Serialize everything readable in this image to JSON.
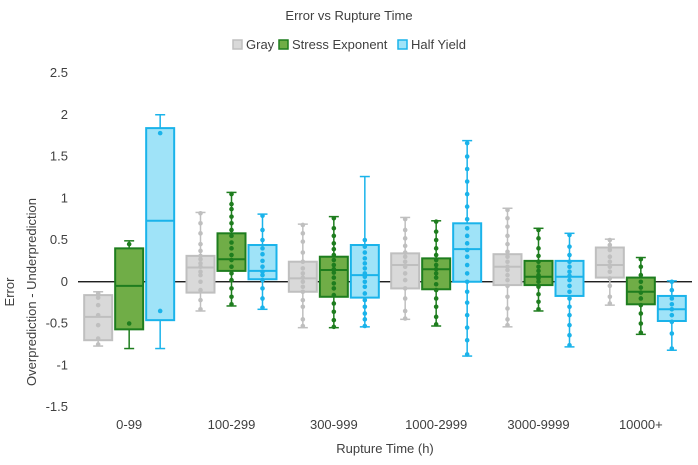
{
  "chart_data": {
    "type": "box",
    "title": "Error vs Rupture Time",
    "xlabel": "Rupture Time (h)",
    "ylabel_lines": [
      "Error",
      "Overprediction - Underprediction"
    ],
    "ylim": [
      -1.5,
      2.5
    ],
    "yticks": [
      -1.5,
      -1,
      -0.5,
      0,
      0.5,
      1,
      1.5,
      2,
      2.5
    ],
    "ytick_labels": [
      "-1.5",
      "-1",
      "-0.5",
      "0",
      "0.5",
      "1",
      "1.5",
      "2",
      "2.5"
    ],
    "categories": [
      "0-99",
      "100-299",
      "300-999",
      "1000-2999",
      "3000-9999",
      "10000+"
    ],
    "legend_position": "top",
    "grid": false,
    "series": [
      {
        "name": "Gray",
        "fill": "#d9d9d9",
        "stroke": "#bfbfbf",
        "point": "#bfbfbf",
        "boxes": [
          {
            "min": -0.77,
            "q1": -0.7,
            "median": -0.42,
            "q3": -0.16,
            "max": -0.12,
            "points": [
              -0.75,
              -0.68,
              -0.52,
              -0.4,
              -0.28,
              -0.19,
              -0.14
            ]
          },
          {
            "min": -0.35,
            "q1": -0.13,
            "median": 0.17,
            "q3": 0.31,
            "max": 0.83,
            "points": [
              -0.33,
              -0.22,
              -0.1,
              0.0,
              0.08,
              0.12,
              0.18,
              0.22,
              0.27,
              0.31,
              0.37,
              0.45,
              0.58,
              0.7,
              0.82
            ]
          },
          {
            "min": -0.55,
            "q1": -0.12,
            "median": 0.04,
            "q3": 0.24,
            "max": 0.69,
            "points": [
              -0.53,
              -0.45,
              -0.3,
              -0.22,
              -0.12,
              -0.06,
              0.0,
              0.05,
              0.1,
              0.16,
              0.24,
              0.35,
              0.48,
              0.58,
              0.68
            ]
          },
          {
            "min": -0.45,
            "q1": -0.08,
            "median": 0.2,
            "q3": 0.34,
            "max": 0.77,
            "points": [
              -0.44,
              -0.35,
              -0.2,
              -0.08,
              0.02,
              0.1,
              0.18,
              0.24,
              0.3,
              0.35,
              0.43,
              0.52,
              0.62,
              0.75
            ]
          },
          {
            "min": -0.54,
            "q1": -0.04,
            "median": 0.18,
            "q3": 0.33,
            "max": 0.88,
            "points": [
              -0.52,
              -0.45,
              -0.32,
              -0.18,
              -0.05,
              0.02,
              0.08,
              0.14,
              0.18,
              0.24,
              0.3,
              0.36,
              0.45,
              0.55,
              0.66,
              0.76,
              0.86
            ]
          },
          {
            "min": -0.28,
            "q1": 0.05,
            "median": 0.2,
            "q3": 0.41,
            "max": 0.51,
            "points": [
              -0.26,
              -0.18,
              -0.05,
              0.04,
              0.12,
              0.18,
              0.24,
              0.3,
              0.38,
              0.44,
              0.5
            ]
          }
        ]
      },
      {
        "name": "Stress Exponent",
        "fill": "#70ad47",
        "stroke": "#1e7d1e",
        "point": "#1e7d1e",
        "boxes": [
          {
            "min": -0.8,
            "q1": -0.57,
            "median": -0.05,
            "q3": 0.4,
            "max": 0.49,
            "points": [
              -0.5,
              0.45
            ]
          },
          {
            "min": -0.29,
            "q1": 0.13,
            "median": 0.27,
            "q3": 0.58,
            "max": 1.07,
            "points": [
              -0.27,
              -0.18,
              -0.08,
              0.02,
              0.1,
              0.18,
              0.26,
              0.32,
              0.4,
              0.47,
              0.55,
              0.62,
              0.7,
              0.78,
              0.87,
              0.93,
              1.05
            ]
          },
          {
            "min": -0.55,
            "q1": -0.18,
            "median": 0.14,
            "q3": 0.3,
            "max": 0.78,
            "points": [
              -0.54,
              -0.46,
              -0.36,
              -0.26,
              -0.16,
              -0.08,
              -0.02,
              0.05,
              0.11,
              0.15,
              0.2,
              0.26,
              0.32,
              0.39,
              0.46,
              0.55,
              0.64,
              0.76
            ]
          },
          {
            "min": -0.53,
            "q1": -0.09,
            "median": 0.15,
            "q3": 0.28,
            "max": 0.73,
            "points": [
              -0.51,
              -0.42,
              -0.3,
              -0.2,
              -0.1,
              -0.03,
              0.05,
              0.1,
              0.15,
              0.2,
              0.26,
              0.32,
              0.4,
              0.5,
              0.6,
              0.72
            ]
          },
          {
            "min": -0.35,
            "q1": -0.04,
            "median": 0.06,
            "q3": 0.25,
            "max": 0.64,
            "points": [
              -0.33,
              -0.24,
              -0.15,
              -0.06,
              0.0,
              0.04,
              0.08,
              0.13,
              0.18,
              0.24,
              0.31,
              0.4,
              0.52,
              0.62
            ]
          },
          {
            "min": -0.63,
            "q1": -0.27,
            "median": -0.12,
            "q3": 0.05,
            "max": 0.29,
            "points": [
              -0.61,
              -0.5,
              -0.38,
              -0.28,
              -0.2,
              -0.13,
              -0.07,
              0.0,
              0.08,
              0.18,
              0.27
            ]
          }
        ]
      },
      {
        "name": "Half Yield",
        "fill": "#9fe3f8",
        "stroke": "#1ab3ea",
        "point": "#1ab3ea",
        "boxes": [
          {
            "min": -0.8,
            "q1": -0.46,
            "median": 0.73,
            "q3": 1.84,
            "max": 2.0,
            "points": [
              -0.35,
              1.78
            ]
          },
          {
            "min": -0.33,
            "q1": 0.03,
            "median": 0.13,
            "q3": 0.44,
            "max": 0.81,
            "points": [
              -0.31,
              -0.2,
              -0.08,
              0.02,
              0.08,
              0.12,
              0.18,
              0.25,
              0.33,
              0.4,
              0.5,
              0.62,
              0.79
            ]
          },
          {
            "min": -0.54,
            "q1": -0.19,
            "median": 0.08,
            "q3": 0.44,
            "max": 1.26,
            "points": [
              -0.53,
              -0.45,
              -0.38,
              -0.3,
              -0.22,
              -0.14,
              -0.06,
              0.0,
              0.06,
              0.1,
              0.16,
              0.22,
              0.28,
              0.35,
              0.42,
              0.5
            ]
          },
          {
            "min": -0.89,
            "q1": 0.0,
            "median": 0.39,
            "q3": 0.7,
            "max": 1.69,
            "points": [
              -0.87,
              -0.7,
              -0.55,
              -0.4,
              -0.25,
              -0.12,
              0.0,
              0.1,
              0.2,
              0.3,
              0.38,
              0.46,
              0.55,
              0.64,
              0.75,
              0.9,
              1.05,
              1.2,
              1.35,
              1.5,
              1.66
            ]
          },
          {
            "min": -0.78,
            "q1": -0.17,
            "median": 0.06,
            "q3": 0.25,
            "max": 0.58,
            "points": [
              -0.76,
              -0.64,
              -0.52,
              -0.4,
              -0.3,
              -0.2,
              -0.12,
              -0.05,
              0.02,
              0.07,
              0.12,
              0.18,
              0.24,
              0.32,
              0.42,
              0.56
            ]
          },
          {
            "min": -0.82,
            "q1": -0.47,
            "median": -0.33,
            "q3": -0.17,
            "max": 0.01,
            "points": [
              -0.8,
              -0.62,
              -0.48,
              -0.4,
              -0.33,
              -0.27,
              -0.2,
              -0.1,
              0.0
            ]
          }
        ]
      }
    ]
  }
}
